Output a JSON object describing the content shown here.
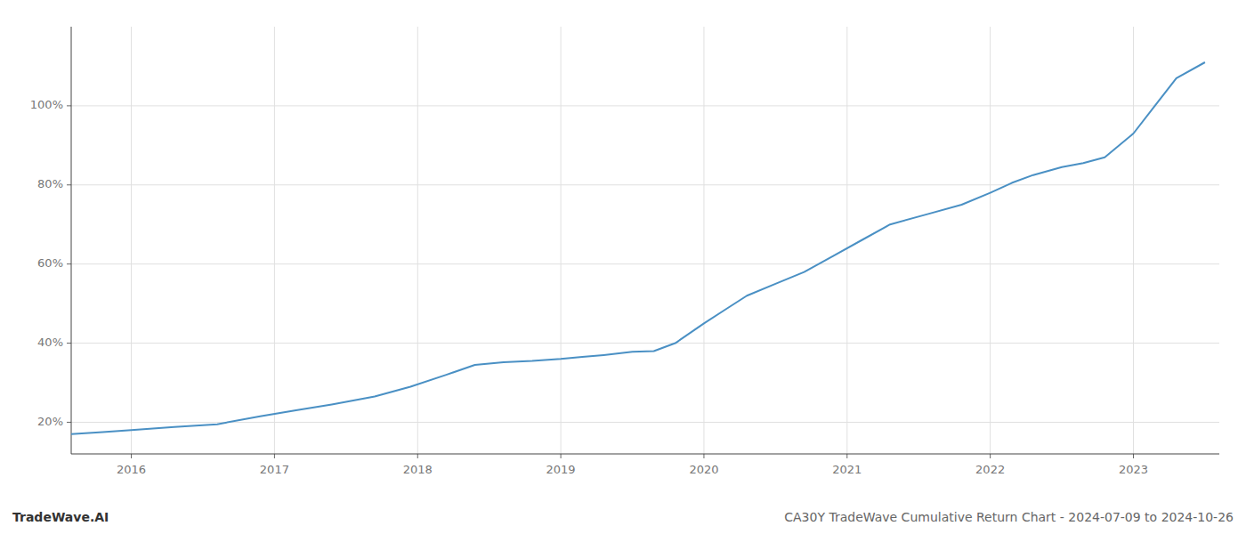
{
  "chart_data": {
    "type": "line",
    "title": "CA30Y TradeWave Cumulative Return Chart - 2024-07-09 to 2024-10-26",
    "annotations": [
      "TradeWave.AI"
    ],
    "color": "#4a90c4",
    "grid": true,
    "x": [
      2015.58,
      2015.8,
      2016.0,
      2016.3,
      2016.6,
      2016.9,
      2017.15,
      2017.4,
      2017.7,
      2017.95,
      2018.2,
      2018.4,
      2018.6,
      2018.8,
      2019.0,
      2019.15,
      2019.3,
      2019.5,
      2019.65,
      2019.8,
      2020.0,
      2020.15,
      2020.3,
      2020.5,
      2020.7,
      2020.9,
      2021.1,
      2021.3,
      2021.55,
      2021.8,
      2022.0,
      2022.15,
      2022.3,
      2022.5,
      2022.65,
      2022.8,
      2023.0,
      2023.15,
      2023.3,
      2023.5
    ],
    "values": [
      17.0,
      17.5,
      18.0,
      18.8,
      19.5,
      21.5,
      23.0,
      24.5,
      26.5,
      29.0,
      32.0,
      34.5,
      35.2,
      35.5,
      36.0,
      36.5,
      37.0,
      37.8,
      38.0,
      40.0,
      45.0,
      48.5,
      52.0,
      55.0,
      58.0,
      62.0,
      66.0,
      70.0,
      72.5,
      75.0,
      78.0,
      80.5,
      82.5,
      84.5,
      85.5,
      87.0,
      93.0,
      100.0,
      107.0,
      111.0
    ],
    "xlim": [
      2015.58,
      2023.6
    ],
    "xticks": [
      2016,
      2017,
      2018,
      2019,
      2020,
      2021,
      2022,
      2023
    ],
    "ylim": [
      12,
      120
    ],
    "yticks": [
      {
        "value": 20,
        "label": "20%"
      },
      {
        "value": 40,
        "label": "40%"
      },
      {
        "value": 60,
        "label": "60%"
      },
      {
        "value": 80,
        "label": "80%"
      },
      {
        "value": 100,
        "label": "100%"
      }
    ]
  }
}
